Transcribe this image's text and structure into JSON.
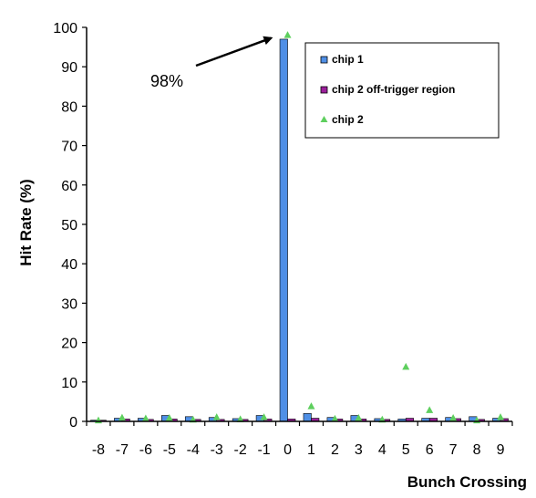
{
  "chart_data": {
    "type": "bar",
    "xlabel": "Bunch Crossing",
    "ylabel": "Hit Rate (%)",
    "ylim": [
      0,
      100
    ],
    "yticks": [
      0,
      10,
      20,
      30,
      40,
      50,
      60,
      70,
      80,
      90,
      100
    ],
    "categories": [
      "-8",
      "-7",
      "-6",
      "-5",
      "-4",
      "-3",
      "-2",
      "-1",
      "0",
      "1",
      "2",
      "3",
      "4",
      "5",
      "6",
      "7",
      "8",
      "9"
    ],
    "series": [
      {
        "name": "chip 1",
        "render": "bar",
        "color": "#4f8fe6",
        "values": [
          0.3,
          0.8,
          0.8,
          1.5,
          1.2,
          1.0,
          0.7,
          1.5,
          97,
          2.0,
          1.0,
          1.5,
          0.7,
          0.6,
          0.8,
          1.0,
          1.2,
          0.8
        ]
      },
      {
        "name": "chip 2 off-trigger region",
        "render": "bar",
        "color": "#9b1f9b",
        "values": [
          0.3,
          0.6,
          0.5,
          0.6,
          0.5,
          0.5,
          0.5,
          0.6,
          0.6,
          0.8,
          0.6,
          0.6,
          0.5,
          0.8,
          0.8,
          0.7,
          0.5,
          0.7
        ]
      },
      {
        "name": "chip 2",
        "render": "marker",
        "color": "#5ecf5e",
        "values": [
          0.2,
          0.9,
          0.7,
          0.8,
          0.4,
          1.0,
          0.5,
          1.0,
          98,
          3.8,
          0.6,
          0.8,
          0.4,
          13.8,
          2.8,
          0.8,
          0.2,
          1.0
        ]
      }
    ],
    "annotations": [
      {
        "text": "98%",
        "points_to": {
          "category": "0",
          "value": 98
        }
      }
    ],
    "legend": {
      "position": "top-right"
    },
    "grid": false
  }
}
